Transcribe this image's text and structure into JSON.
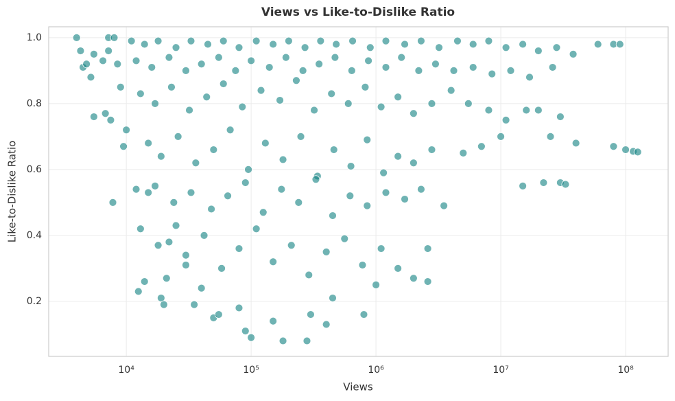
{
  "chart_data": {
    "type": "scatter",
    "title": "Views vs Like-to-Dislike Ratio",
    "x_label": "Views",
    "y_label": "Like-to-Dislike Ratio",
    "color": "#0f8080",
    "x_scale": "log",
    "grid": true,
    "xlim": [
      2390,
      219000000
    ],
    "ylim": [
      0.033,
      1.033
    ],
    "xticks": [
      {
        "value": 10000,
        "label": "10⁴"
      },
      {
        "value": 100000,
        "label": "10⁵"
      },
      {
        "value": 1000000,
        "label": "10⁶"
      },
      {
        "value": 10000000,
        "label": "10⁷"
      },
      {
        "value": 100000000,
        "label": "10⁸"
      }
    ],
    "yticks": [
      0.2,
      0.4,
      0.6,
      0.8,
      {
        "value": 1,
        "label": "1.0"
      }
    ],
    "x": [
      4000,
      4300,
      4500,
      4800,
      5200,
      5500,
      5500,
      6500,
      6800,
      7200,
      7200,
      7500,
      7800,
      8000,
      8500,
      9000,
      9500,
      10000,
      12000,
      13000,
      14000,
      12500,
      15000,
      18000,
      19000,
      20000,
      21000,
      25000,
      30000,
      35000,
      40000,
      50000,
      55000,
      80000,
      90000,
      100000,
      150000,
      180000,
      280000,
      300000,
      400000,
      450000,
      800000,
      1000000,
      2000000,
      2600000,
      2600000,
      3500000,
      2300000,
      15000000,
      22000000,
      30000000,
      33000000,
      40000000,
      80000000,
      100000000,
      115000000,
      125000000,
      60000000,
      80000000,
      90000000,
      25000000,
      30000000,
      20000000,
      11000,
      14000,
      18000,
      25000,
      33000,
      45000,
      60000,
      80000,
      110000,
      150000,
      200000,
      270000,
      360000,
      480000,
      650000,
      900000,
      1200000,
      1700000,
      2300000,
      3200000,
      4500000,
      6000000,
      8000000,
      11000000,
      15000000,
      20000000,
      28000000,
      38000000,
      12000,
      16000,
      22000,
      30000,
      40000,
      55000,
      75000,
      100000,
      140000,
      190000,
      260000,
      350000,
      470000,
      640000,
      870000,
      1200000,
      1600000,
      2200000,
      3000000,
      4200000,
      6000000,
      8500000,
      12000000,
      17000000,
      26000000,
      13000,
      17000,
      23000,
      32000,
      44000,
      60000,
      85000,
      120000,
      170000,
      230000,
      320000,
      440000,
      600000,
      820000,
      1100000,
      1500000,
      2000000,
      2800000,
      4000000,
      5500000,
      8000000,
      11000000,
      16000000,
      15000,
      19000,
      26000,
      36000,
      50000,
      68000,
      95000,
      130000,
      180000,
      250000,
      340000,
      460000,
      630000,
      850000,
      1150000,
      1500000,
      2000000,
      2800000,
      5000000,
      7000000,
      10000000,
      17000,
      24000,
      33000,
      48000,
      65000,
      90000,
      125000,
      175000,
      240000,
      330000,
      450000,
      620000,
      850000,
      1200000,
      1700000,
      22000,
      30000,
      42000,
      58000,
      80000,
      110000,
      150000,
      210000,
      290000,
      400000,
      560000,
      780000,
      1100000,
      1500000
    ],
    "values": [
      1.0,
      0.96,
      0.91,
      0.92,
      0.88,
      0.76,
      0.95,
      0.93,
      0.77,
      1.0,
      0.96,
      0.75,
      0.5,
      1.0,
      0.92,
      0.85,
      0.67,
      0.72,
      0.54,
      0.42,
      0.26,
      0.23,
      0.53,
      0.37,
      0.21,
      0.19,
      0.27,
      0.43,
      0.31,
      0.19,
      0.24,
      0.15,
      0.16,
      0.18,
      0.11,
      0.09,
      0.14,
      0.08,
      0.08,
      0.16,
      0.13,
      0.21,
      0.16,
      0.25,
      0.27,
      0.26,
      0.36,
      0.49,
      0.54,
      0.55,
      0.56,
      0.56,
      0.555,
      0.68,
      0.67,
      0.66,
      0.655,
      0.653,
      0.98,
      0.98,
      0.98,
      0.7,
      0.76,
      0.78,
      0.99,
      0.98,
      0.99,
      0.97,
      0.99,
      0.98,
      0.99,
      0.97,
      0.99,
      0.98,
      0.99,
      0.97,
      0.99,
      0.98,
      0.99,
      0.97,
      0.99,
      0.98,
      0.99,
      0.97,
      0.99,
      0.98,
      0.99,
      0.97,
      0.98,
      0.96,
      0.97,
      0.95,
      0.93,
      0.91,
      0.94,
      0.9,
      0.92,
      0.94,
      0.9,
      0.93,
      0.91,
      0.94,
      0.9,
      0.92,
      0.94,
      0.9,
      0.93,
      0.91,
      0.94,
      0.9,
      0.92,
      0.9,
      0.91,
      0.89,
      0.9,
      0.88,
      0.91,
      0.83,
      0.8,
      0.85,
      0.78,
      0.82,
      0.86,
      0.79,
      0.84,
      0.81,
      0.87,
      0.78,
      0.83,
      0.8,
      0.85,
      0.79,
      0.82,
      0.77,
      0.8,
      0.84,
      0.8,
      0.78,
      0.75,
      0.78,
      0.68,
      0.64,
      0.7,
      0.62,
      0.66,
      0.72,
      0.6,
      0.68,
      0.63,
      0.7,
      0.58,
      0.66,
      0.61,
      0.69,
      0.59,
      0.64,
      0.62,
      0.66,
      0.65,
      0.67,
      0.7,
      0.55,
      0.5,
      0.53,
      0.48,
      0.52,
      0.56,
      0.47,
      0.54,
      0.5,
      0.57,
      0.46,
      0.52,
      0.49,
      0.53,
      0.51,
      0.38,
      0.34,
      0.4,
      0.3,
      0.36,
      0.42,
      0.32,
      0.37,
      0.28,
      0.35,
      0.39,
      0.31,
      0.36,
      0.3
    ]
  }
}
